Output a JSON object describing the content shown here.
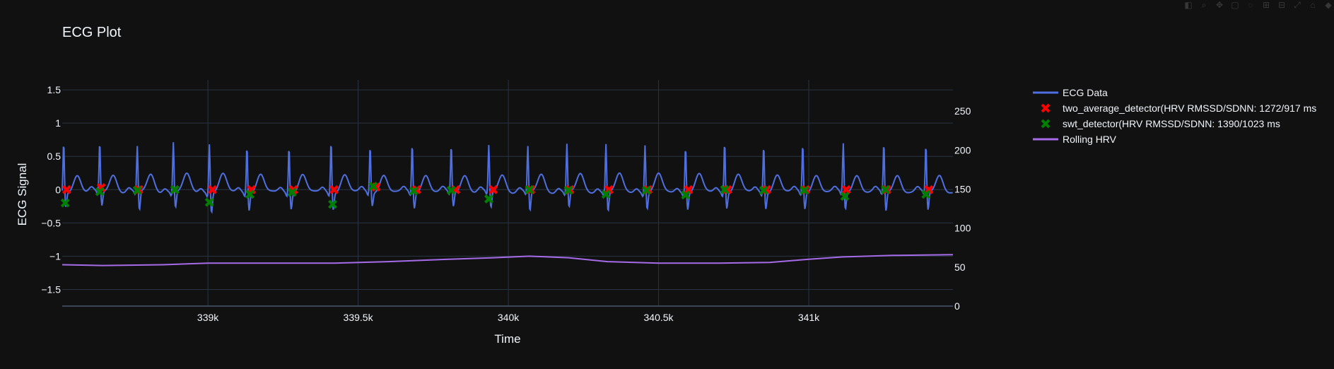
{
  "toolbar": {
    "icons": [
      "camera-icon",
      "zoom-icon",
      "pan-icon",
      "box-select-icon",
      "lasso-icon",
      "zoom-in-icon",
      "zoom-out-icon",
      "autoscale-icon",
      "reset-icon",
      "plotly-logo-icon"
    ]
  },
  "colors": {
    "background": "#111111",
    "grid": "#283442",
    "text": "#f2f5fa",
    "ecg": "#4f6fe0",
    "two_average": "#ff0000",
    "swt": "#008000",
    "rolling_hrv": "#a56be8"
  },
  "chart_data": {
    "type": "line",
    "title": "ECG Plot",
    "xlabel": "Time",
    "ylabel": "ECG Signal",
    "y2label": "",
    "xlim": [
      338515,
      341480
    ],
    "ylim": [
      -1.75,
      1.65
    ],
    "y2lim": [
      0,
      290
    ],
    "x_ticks": [
      339000,
      339500,
      340000,
      340500,
      341000
    ],
    "x_tick_labels": [
      "339k",
      "339.5k",
      "340k",
      "340.5k",
      "341k"
    ],
    "y_ticks": [
      1.5,
      1,
      0.5,
      0,
      -0.5,
      -1,
      -1.5
    ],
    "y_tick_labels": [
      "1.5",
      "1",
      "0.5",
      "0",
      "−0.5",
      "−1",
      "−1.5"
    ],
    "y2_ticks": [
      250,
      200,
      150,
      100,
      50,
      0
    ],
    "y2_tick_labels": [
      "250",
      "200",
      "150",
      "100",
      "50",
      "0"
    ],
    "grid": true,
    "legend_position": "right",
    "series": [
      {
        "name": "ECG Data",
        "kind": "line",
        "axis": "y",
        "r_peaks": [
          338520,
          338640,
          338765,
          338885,
          339005,
          339130,
          339270,
          339410,
          339540,
          339680,
          339810,
          339935,
          340065,
          340195,
          340325,
          340455,
          340590,
          340720,
          340850,
          340980,
          341115,
          341250,
          341390
        ],
        "r_amplitudes": [
          0.77,
          0.76,
          0.7,
          0.77,
          0.76,
          0.73,
          0.72,
          0.8,
          0.72,
          0.75,
          0.72,
          0.71,
          0.7,
          0.74,
          0.75,
          0.74,
          0.72,
          0.79,
          0.73,
          0.75,
          0.75,
          0.75,
          0.72
        ],
        "s_depths": [
          -0.22,
          -0.22,
          -0.29,
          -0.24,
          -0.3,
          -0.26,
          -0.24,
          -0.25,
          -0.2,
          -0.24,
          -0.22,
          -0.25,
          -0.3,
          -0.24,
          -0.29,
          -0.25,
          -0.25,
          -0.23,
          -0.24,
          -0.25,
          -0.26,
          -0.29,
          -0.28
        ]
      },
      {
        "name": "two_average_detector(HRV RMSSD/SDNN: 1272/917 ms",
        "kind": "markers",
        "axis": "y",
        "marker": "x",
        "x": [
          338530,
          338645,
          338770,
          338890,
          339015,
          339145,
          339285,
          339420,
          339560,
          339695,
          339825,
          339950,
          340075,
          340205,
          340335,
          340465,
          340600,
          340730,
          340860,
          340990,
          341125,
          341260,
          341400
        ],
        "y": [
          0.0,
          0.03,
          0.0,
          0.0,
          0.0,
          0.0,
          0.0,
          0.0,
          0.04,
          0.0,
          0.0,
          0.0,
          0.0,
          0.0,
          0.0,
          0.0,
          0.0,
          0.0,
          0.0,
          0.0,
          0.0,
          0.0,
          0.0
        ]
      },
      {
        "name": "swt_detector(HRV RMSSD/SDNN: 1390/1023 ms",
        "kind": "markers",
        "axis": "y",
        "marker": "x",
        "x": [
          338525,
          338640,
          338765,
          338890,
          339005,
          339140,
          339280,
          339415,
          339550,
          339685,
          339810,
          339935,
          340070,
          340200,
          340325,
          340460,
          340590,
          340720,
          340850,
          340985,
          341120,
          341255,
          341390
        ],
        "y": [
          -0.2,
          -0.03,
          -0.01,
          0.0,
          -0.19,
          -0.07,
          -0.04,
          -0.22,
          0.05,
          -0.02,
          -0.01,
          -0.14,
          0.0,
          -0.01,
          -0.07,
          -0.01,
          -0.08,
          0.0,
          -0.01,
          -0.01,
          -0.1,
          0.0,
          -0.07
        ]
      },
      {
        "name": "Rolling HRV",
        "kind": "line",
        "axis": "y2",
        "x": [
          338515,
          338650,
          338850,
          339000,
          339200,
          339420,
          339600,
          339800,
          339950,
          340070,
          340200,
          340330,
          340500,
          340700,
          340870,
          341000,
          341110,
          341280,
          341480
        ],
        "y": [
          53,
          52,
          53,
          55,
          55,
          55,
          57,
          60,
          62,
          64,
          62,
          57,
          55,
          55,
          56,
          60,
          63,
          65,
          66
        ]
      }
    ]
  }
}
